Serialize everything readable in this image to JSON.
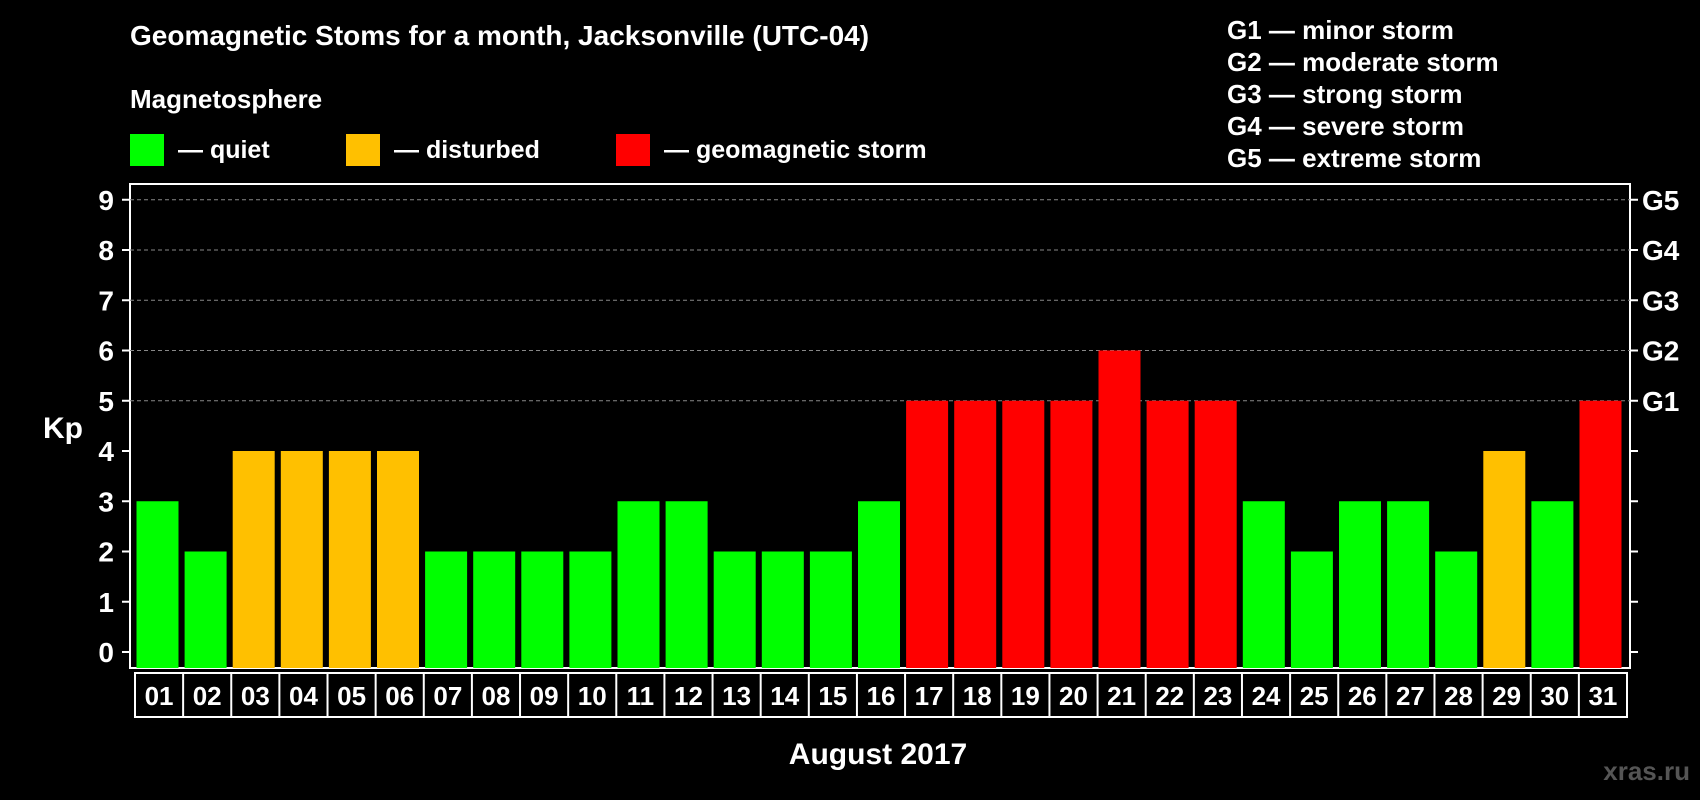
{
  "title": "Geomagnetic Stoms for a month, Jacksonville (UTC-04)",
  "subtitle": "Magnetosphere",
  "legend": [
    {
      "label": "— quiet",
      "color": "#00ff00"
    },
    {
      "label": "— disturbed",
      "color": "#ffc000"
    },
    {
      "label": "— geomagnetic storm",
      "color": "#ff0000"
    }
  ],
  "g_scale": [
    "G1 — minor storm",
    "G2 — moderate storm",
    "G3 — strong storm",
    "G4 — severe storm",
    "G5 — extreme storm"
  ],
  "watermark": "xras.ru",
  "colors": {
    "quiet": "#00ff00",
    "disturbed": "#ffc000",
    "storm": "#ff0000"
  },
  "chart_data": {
    "type": "bar",
    "title": "Geomagnetic Stoms for a month, Jacksonville (UTC-04)",
    "xlabel": "August 2017",
    "ylabel": "Kp",
    "ylim": [
      0,
      9
    ],
    "yticks": [
      0,
      1,
      2,
      3,
      4,
      5,
      6,
      7,
      8,
      9
    ],
    "right_ticks": [
      {
        "kp": 5,
        "label": "G1"
      },
      {
        "kp": 6,
        "label": "G2"
      },
      {
        "kp": 7,
        "label": "G3"
      },
      {
        "kp": 8,
        "label": "G4"
      },
      {
        "kp": 9,
        "label": "G5"
      }
    ],
    "grid": "dashed horizontal at Kp 5-9",
    "categories": [
      "01",
      "02",
      "03",
      "04",
      "05",
      "06",
      "07",
      "08",
      "09",
      "10",
      "11",
      "12",
      "13",
      "14",
      "15",
      "16",
      "17",
      "18",
      "19",
      "20",
      "21",
      "22",
      "23",
      "24",
      "25",
      "26",
      "27",
      "28",
      "29",
      "30",
      "31"
    ],
    "values": [
      3,
      2,
      4,
      4,
      4,
      4,
      2,
      2,
      2,
      2,
      3,
      3,
      2,
      2,
      2,
      3,
      5,
      5,
      5,
      5,
      6,
      5,
      5,
      3,
      2,
      3,
      3,
      2,
      4,
      3,
      5
    ],
    "color_rule": "quiet < 4, disturbed = 4, geomagnetic storm >= 5"
  }
}
